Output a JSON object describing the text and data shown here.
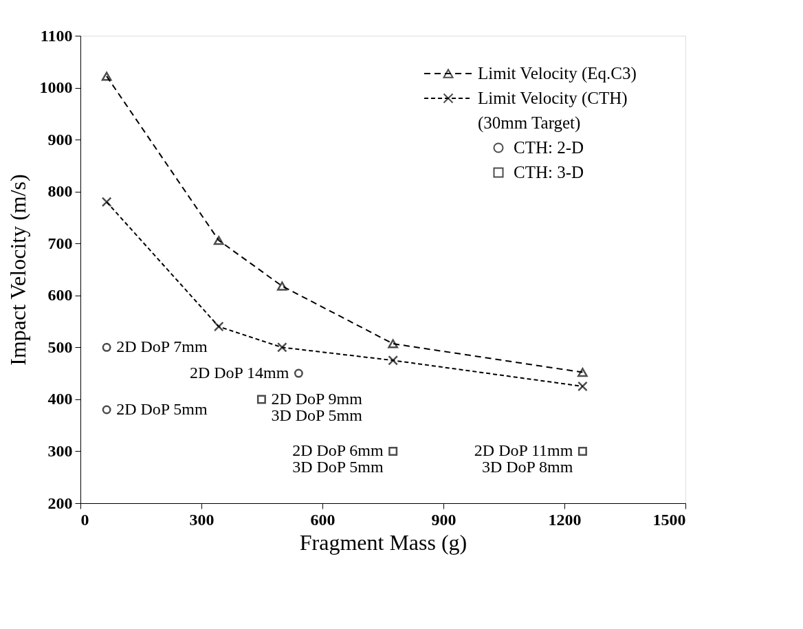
{
  "chart_data": {
    "type": "line",
    "xlabel": "Fragment Mass (g)",
    "ylabel": "Impact Velocity (m/s)",
    "xlim": [
      0,
      1500
    ],
    "xticks": [
      0,
      300,
      600,
      900,
      1200,
      1500
    ],
    "ylim": [
      200,
      1100
    ],
    "yticks": [
      200,
      300,
      400,
      500,
      600,
      700,
      800,
      900,
      1000,
      1100
    ],
    "grid": false,
    "legend": "top right",
    "series": [
      {
        "name": "Limit Velocity (Eq.C3)",
        "color": "#000000",
        "marker": "triangle",
        "line_style": "dashed",
        "x": [
          65,
          343,
          500,
          775,
          1245
        ],
        "values": [
          1022,
          706,
          618,
          507,
          452
        ]
      },
      {
        "name": "Limit Velocity (CTH)",
        "color": "#000000",
        "marker": "cross",
        "line_style": "dashed",
        "x": [
          65,
          343,
          500,
          775,
          1245
        ],
        "values": [
          780,
          540,
          500,
          475,
          425
        ]
      },
      {
        "name": "CTH: 2-D",
        "type": "scatter",
        "color": "#000000",
        "marker": "circle",
        "x": [
          65,
          65,
          541
        ],
        "values": [
          500,
          380,
          450
        ]
      },
      {
        "name": "CTH: 3-D",
        "type": "scatter",
        "color": "#000000",
        "marker": "square",
        "x": [
          449,
          775,
          1245
        ],
        "values": [
          400,
          300,
          300
        ]
      }
    ],
    "annotations": [
      "(30mm Target)",
      {
        "text": "2D DoP 7mm",
        "x": 65,
        "y": 500
      },
      {
        "text": "2D DoP 5mm",
        "x": 65,
        "y": 380
      },
      {
        "text": "2D DoP 14mm",
        "x": 541,
        "y": 450
      },
      {
        "text": "2D DoP 9mm\n3D DoP 5mm",
        "x": 449,
        "y": 400
      },
      {
        "text": "2D DoP 6mm\n3D DoP 5mm",
        "x": 775,
        "y": 300
      },
      {
        "text": "2D DoP 11mm\n3D DoP 8mm",
        "x": 1245,
        "y": 300
      }
    ]
  }
}
